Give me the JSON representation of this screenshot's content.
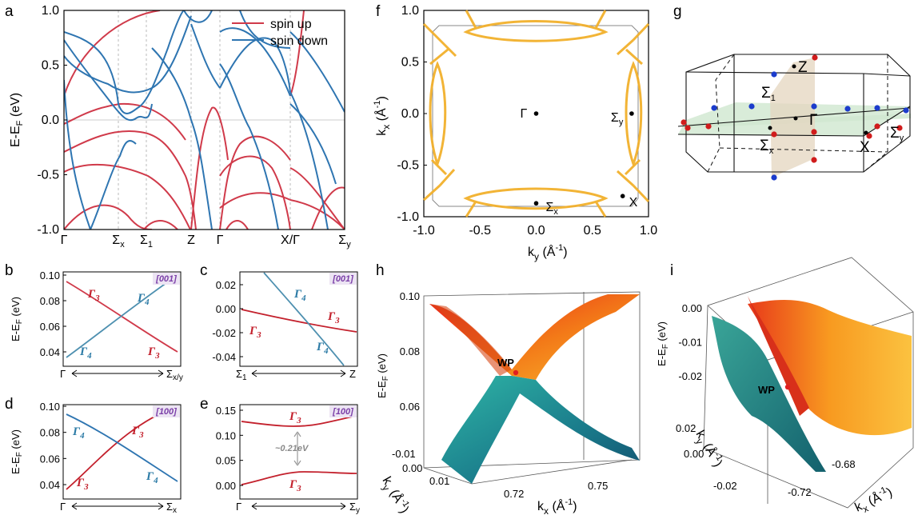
{
  "panel_letters": {
    "a": "a",
    "b": "b",
    "c": "c",
    "d": "d",
    "e": "e",
    "f": "f",
    "g": "g",
    "h": "h",
    "i": "i"
  },
  "colors": {
    "spin_up": "#d03a4a",
    "spin_down": "#2e75b1",
    "fermi": "#f2b02c",
    "plane": "#cfe7cf",
    "shade": "#e4d5bf"
  },
  "chart_data": [
    {
      "panel": "a",
      "type": "line",
      "ylabel": "E-E",
      "ylabel_sub": "F",
      "ylabel_unit": " (eV)",
      "ylim": [
        -1.0,
        1.0
      ],
      "yticks": [
        "1.0",
        "0.5",
        "0.0",
        "-0.5",
        "-1.0"
      ],
      "xticks": [
        "Γ",
        "Σ",
        "Σ",
        "Z",
        "Γ",
        "X/Γ",
        "Σ"
      ],
      "xtick_subs": [
        "",
        "x",
        "1",
        "",
        "",
        "",
        "y"
      ],
      "series": [
        {
          "name": "spin up"
        },
        {
          "name": "spin down"
        }
      ]
    },
    {
      "panel": "b",
      "type": "line",
      "ylabel": "E-E",
      "ylabel_sub": "F",
      "ylabel_unit": " (eV)",
      "ylim": [
        0.03,
        0.1
      ],
      "yticks": [
        "0.10",
        "0.08",
        "0.06",
        "0.04"
      ],
      "x_start": "Γ",
      "x_end": "Σ",
      "x_end_sub": "x/y",
      "direction": "[001]",
      "band_labels": [
        "Γ",
        "Γ",
        "Γ",
        "Γ"
      ],
      "band_subs": [
        "3",
        "4",
        "4",
        "3"
      ]
    },
    {
      "panel": "c",
      "type": "line",
      "ylim": [
        -0.045,
        0.03
      ],
      "yticks": [
        "0.02",
        "0.00",
        "-0.02",
        "-0.04"
      ],
      "x_start": "Σ",
      "x_start_sub": "1",
      "x_end": "Z",
      "direction": "[001]",
      "band_labels": [
        "Γ",
        "Γ",
        "Γ",
        "Γ"
      ],
      "band_subs": [
        "4",
        "3",
        "3",
        "4"
      ]
    },
    {
      "panel": "d",
      "type": "line",
      "ylabel": "E-E",
      "ylabel_sub": "F",
      "ylabel_unit": " (eV)",
      "ylim": [
        0.03,
        0.1
      ],
      "yticks": [
        "0.10",
        "0.08",
        "0.06",
        "0.04"
      ],
      "x_start": "Γ",
      "x_end": "Σ",
      "x_end_sub": "x",
      "direction": "[100]",
      "band_labels": [
        "Γ",
        "Γ",
        "Γ",
        "Γ"
      ],
      "band_subs": [
        "4",
        "3",
        "4",
        "3"
      ]
    },
    {
      "panel": "e",
      "type": "line",
      "ylim": [
        -0.02,
        0.15
      ],
      "yticks": [
        "0.15",
        "0.10",
        "0.05",
        "0.00"
      ],
      "x_start": "Γ",
      "x_end": "Σ",
      "x_end_sub": "y",
      "direction": "[100]",
      "gap": "~0.21eV",
      "band_labels": [
        "Γ",
        "Γ"
      ],
      "band_subs": [
        "3",
        "3"
      ]
    },
    {
      "panel": "f",
      "type": "scatter",
      "xlabel": "k",
      "xlabel_sub": "y",
      "xlabel_unit": " (Å",
      "xlabel_sup": "-1",
      "ylabel": "k",
      "ylabel_sub": "x",
      "xlim": [
        -1,
        1
      ],
      "ylim": [
        -1,
        1
      ],
      "xticks": [
        "-1.0",
        "-0.5",
        "0.0",
        "0.5",
        "1.0"
      ],
      "yticks": [
        "1.0",
        "0.5",
        "0.0",
        "-0.5",
        "-1.0"
      ],
      "points": [
        {
          "label": "Γ",
          "sub": "",
          "x": 0,
          "y": 0
        },
        {
          "label": "Σ",
          "sub": "y",
          "x": 0.85,
          "y": 0
        },
        {
          "label": "Σ",
          "sub": "x",
          "x": 0,
          "y": -0.87
        },
        {
          "label": "X",
          "sub": "",
          "x": 0.77,
          "y": -0.8
        }
      ]
    },
    {
      "panel": "h",
      "type": "area",
      "ylabel": "E-E",
      "ylabel_sub": "F",
      "ylabel_unit": " (eV)",
      "zticks": [
        "0.10",
        "0.08",
        "0.06"
      ],
      "xticks": [
        "0.72",
        "0.75"
      ],
      "yticks": [
        "-0.01",
        "0.00",
        "0.01"
      ],
      "xlabel": "k",
      "xlabel_sub": "x",
      "ylabel2": "k",
      "ylabel2_sub": "y",
      "point": "WP"
    },
    {
      "panel": "i",
      "type": "area",
      "ylabel": "E-E",
      "ylabel_sub": "F",
      "ylabel_unit": " (eV)",
      "zticks": [
        "0.00",
        "-0.01",
        "-0.02"
      ],
      "xticks": [
        "-0.72",
        "-0.68"
      ],
      "yticks": [
        "0.02",
        "0.00",
        "-0.02"
      ],
      "xlabel": "k",
      "xlabel_sub": "x",
      "ylabel2": "k",
      "ylabel2_sub": "y",
      "point": "WP"
    }
  ],
  "bz": {
    "points": [
      {
        "label": "Z",
        "sub": ""
      },
      {
        "label": "Σ",
        "sub": "1"
      },
      {
        "label": "Γ",
        "sub": ""
      },
      {
        "label": "Σ",
        "sub": "x"
      },
      {
        "label": "X",
        "sub": ""
      },
      {
        "label": "Σ",
        "sub": "y"
      }
    ]
  }
}
